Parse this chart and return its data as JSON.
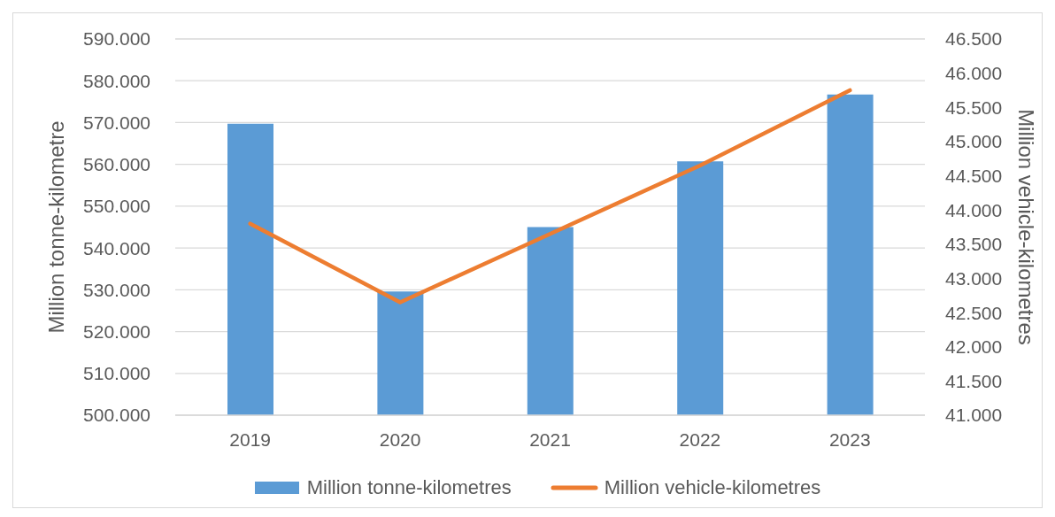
{
  "chart_data": {
    "type": "bar",
    "categories": [
      "2019",
      "2020",
      "2021",
      "2022",
      "2023"
    ],
    "series": [
      {
        "name": "Million tonne-kilometres",
        "color": "#5b9bd5",
        "values": [
          569700,
          529600,
          545000,
          560700,
          576700
        ]
      },
      {
        "name": "Million vehicle-kilometres",
        "type": "line",
        "axis": "y2",
        "color": "#ed7d31",
        "values": [
          43800,
          42650,
          43650,
          44650,
          45750
        ]
      }
    ],
    "ylabel": "Million tonne-kilometre",
    "y2label": "Million vehicle-kilometres",
    "ylim": [
      500000,
      590000
    ],
    "yticks": [
      {
        "value": 500000,
        "label": "500.000"
      },
      {
        "value": 510000,
        "label": "510.000"
      },
      {
        "value": 520000,
        "label": "520.000"
      },
      {
        "value": 530000,
        "label": "530.000"
      },
      {
        "value": 540000,
        "label": "540.000"
      },
      {
        "value": 550000,
        "label": "550.000"
      },
      {
        "value": 560000,
        "label": "560.000"
      },
      {
        "value": 570000,
        "label": "570.000"
      },
      {
        "value": 580000,
        "label": "580.000"
      },
      {
        "value": 590000,
        "label": "590.000"
      }
    ],
    "y2lim": [
      41000,
      46500
    ],
    "y2ticks": [
      {
        "value": 41000,
        "label": "41.000"
      },
      {
        "value": 41500,
        "label": "41.500"
      },
      {
        "value": 42000,
        "label": "42.000"
      },
      {
        "value": 42500,
        "label": "42.500"
      },
      {
        "value": 43000,
        "label": "43.000"
      },
      {
        "value": 43500,
        "label": "43.500"
      },
      {
        "value": 44000,
        "label": "44.000"
      },
      {
        "value": 44500,
        "label": "44.500"
      },
      {
        "value": 45000,
        "label": "45.000"
      },
      {
        "value": 45500,
        "label": "45.500"
      },
      {
        "value": 46000,
        "label": "46.000"
      },
      {
        "value": 46500,
        "label": "46.500"
      }
    ],
    "grid": "y",
    "legend": "bottom",
    "marker": "none"
  }
}
